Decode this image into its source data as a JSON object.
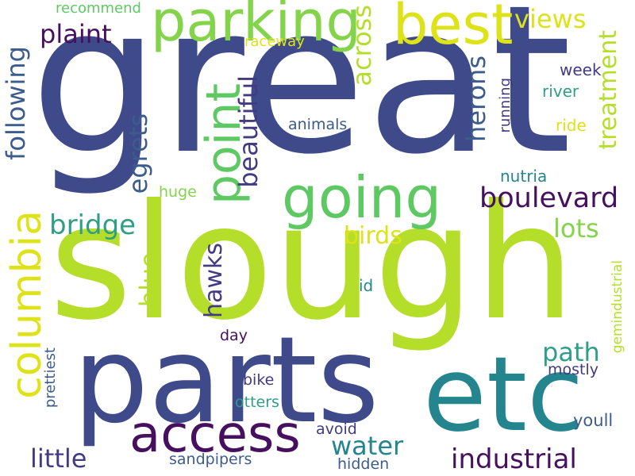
{
  "palette": {
    "navy": "#3f4a8a",
    "dark_purple": "#46105f",
    "indigo": "#433a84",
    "blue_steel": "#3b5c8c",
    "teal": "#25858e",
    "sea_green": "#2f9e86",
    "green": "#5ec962",
    "light_green": "#84d44b",
    "lime": "#b5de2b",
    "yellow": "#dde318"
  },
  "words": {
    "great": "great",
    "slough": "slough",
    "parts": "parts",
    "etc": "etc",
    "parking": "parking",
    "best": "best",
    "going": "going",
    "point": "point",
    "access": "access",
    "columbia": "columbia",
    "boulevard": "boulevard",
    "industrial": "industrial",
    "plaint": "plaint",
    "following": "following",
    "across": "across",
    "views": "views",
    "recommend": "recommend",
    "raceway": "raceway",
    "week": "week",
    "treatment": "treatment",
    "herons": "herons",
    "beautiful": "beautiful",
    "egrets": "egrets",
    "river": "river",
    "running": "running",
    "animals": "animals",
    "ride": "ride",
    "nutria": "nutria",
    "huge": "huge",
    "bridge": "bridge",
    "birds": "birds",
    "lots": "lots",
    "blue": "blue",
    "hawks": "hawks",
    "id": "id",
    "gemindustrial": "gemindustrial",
    "path": "path",
    "day": "day",
    "mostly": "mostly",
    "prettiest": "prettiest",
    "bike": "bike",
    "otters": "otters",
    "water": "water",
    "little": "little",
    "avoid": "avoid",
    "youll": "youll",
    "hidden": "hidden",
    "sandpipers": "sandpipers"
  }
}
